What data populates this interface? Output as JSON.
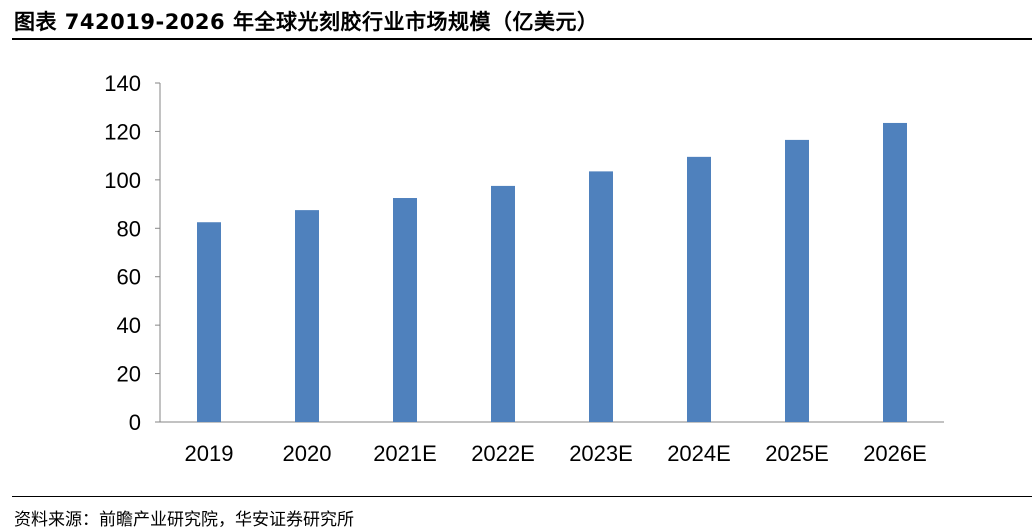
{
  "header": {
    "title": "图表 742019-2026 年全球光刻胶行业市场规模（亿美元）"
  },
  "footer": {
    "source": "资料来源：前瞻产业研究院，华安证券研究所"
  },
  "chart_data": {
    "type": "bar",
    "title": "",
    "xlabel": "",
    "ylabel": "",
    "categories": [
      "2019",
      "2020",
      "2021E",
      "2022E",
      "2023E",
      "2024E",
      "2025E",
      "2026E"
    ],
    "values": [
      82.5,
      87.5,
      92.5,
      97.5,
      103.5,
      109.5,
      116.5,
      123.5
    ],
    "ylim": [
      0,
      140
    ],
    "yticks": [
      0,
      20,
      40,
      60,
      80,
      100,
      120,
      140
    ],
    "bar_color": "#4F81BD",
    "grid": false,
    "legend": "none"
  }
}
